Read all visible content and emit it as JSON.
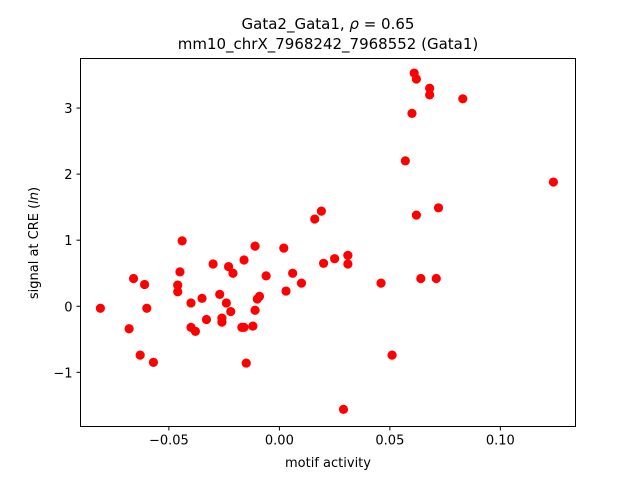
{
  "chart_data": {
    "type": "scatter",
    "title_line1_prefix": "Gata2_Gata1, ",
    "title_line1_rho": "ρ",
    "title_line1_suffix": " = 0.65",
    "title_line2": "mm10_chrX_7968242_7968552 (Gata1)",
    "xlabel": "motif activity",
    "ylabel_prefix": "signal at CRE (",
    "ylabel_italic": "ln",
    "ylabel_suffix": ")",
    "xlim": [
      -0.09,
      0.134
    ],
    "ylim": [
      -1.82,
      3.75
    ],
    "xticks": [
      -0.05,
      0.0,
      0.05,
      0.1
    ],
    "xtick_labels": [
      "−0.05",
      "0.00",
      "0.05",
      "0.10"
    ],
    "yticks": [
      -1,
      0,
      1,
      2,
      3
    ],
    "ytick_labels": [
      "−1",
      "0",
      "1",
      "2",
      "3"
    ],
    "grid": false,
    "marker_color": "#ff0000",
    "points": [
      [
        -0.081,
        -0.03
      ],
      [
        -0.068,
        -0.34
      ],
      [
        -0.066,
        0.42
      ],
      [
        -0.063,
        -0.74
      ],
      [
        -0.061,
        0.33
      ],
      [
        -0.06,
        -0.03
      ],
      [
        -0.057,
        -0.85
      ],
      [
        -0.046,
        0.32
      ],
      [
        -0.046,
        0.22
      ],
      [
        -0.045,
        0.52
      ],
      [
        -0.044,
        0.99
      ],
      [
        -0.04,
        0.05
      ],
      [
        -0.04,
        -0.32
      ],
      [
        -0.038,
        -0.38
      ],
      [
        -0.035,
        0.12
      ],
      [
        -0.033,
        -0.2
      ],
      [
        -0.03,
        0.64
      ],
      [
        -0.027,
        0.18
      ],
      [
        -0.026,
        -0.18
      ],
      [
        -0.026,
        -0.24
      ],
      [
        -0.024,
        0.05
      ],
      [
        -0.023,
        0.6
      ],
      [
        -0.022,
        -0.08
      ],
      [
        -0.021,
        0.5
      ],
      [
        -0.017,
        -0.32
      ],
      [
        -0.016,
        -0.32
      ],
      [
        -0.016,
        0.7
      ],
      [
        -0.015,
        -0.86
      ],
      [
        -0.012,
        -0.3
      ],
      [
        -0.011,
        0.91
      ],
      [
        -0.011,
        -0.06
      ],
      [
        -0.01,
        0.11
      ],
      [
        -0.009,
        0.15
      ],
      [
        -0.006,
        0.46
      ],
      [
        0.002,
        0.88
      ],
      [
        0.003,
        0.23
      ],
      [
        0.006,
        0.5
      ],
      [
        0.01,
        0.35
      ],
      [
        0.016,
        1.32
      ],
      [
        0.019,
        1.44
      ],
      [
        0.02,
        0.65
      ],
      [
        0.025,
        0.72
      ],
      [
        0.029,
        -1.56
      ],
      [
        0.031,
        0.64
      ],
      [
        0.031,
        0.77
      ],
      [
        0.046,
        0.35
      ],
      [
        0.051,
        -0.74
      ],
      [
        0.057,
        2.2
      ],
      [
        0.06,
        2.92
      ],
      [
        0.061,
        3.53
      ],
      [
        0.062,
        3.44
      ],
      [
        0.062,
        1.38
      ],
      [
        0.064,
        0.42
      ],
      [
        0.068,
        3.3
      ],
      [
        0.068,
        3.2
      ],
      [
        0.071,
        0.42
      ],
      [
        0.072,
        1.49
      ],
      [
        0.083,
        3.14
      ],
      [
        0.124,
        1.88
      ]
    ]
  }
}
